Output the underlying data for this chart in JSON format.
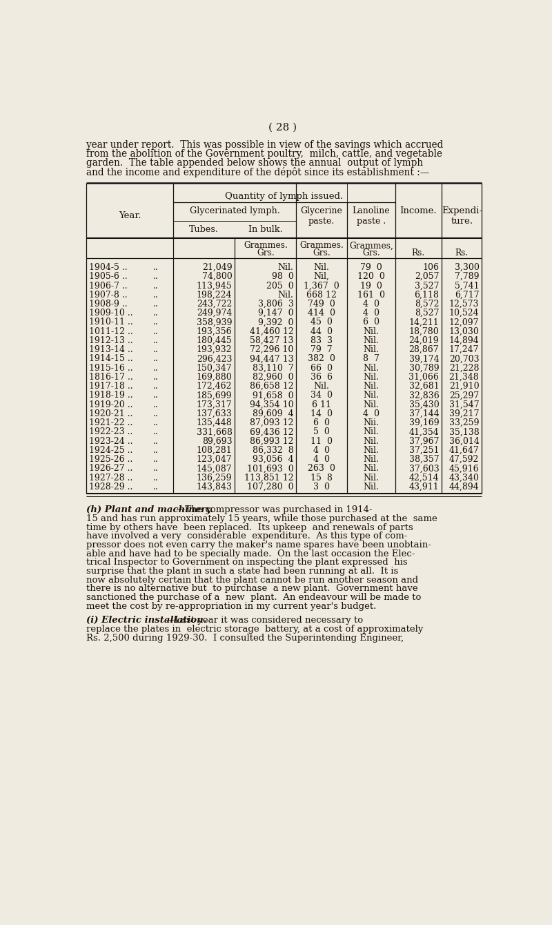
{
  "page_number": "( 28 )",
  "background_color": "#f0ebe0",
  "intro_text_lines": [
    "year under report.  This was possible in view of the savings which accrued",
    "from the abolition of the Government poultry,  milch, cattle, and vegetable",
    "garden.  The table appended below shows the annual  output of lymph",
    "and the income and expenditure of the dépôt since its establishment :—"
  ],
  "table": {
    "rows": [
      [
        "1904-5",
        "21,049",
        "Nil.",
        "Nil.",
        "79  0",
        "106",
        "3,300"
      ],
      [
        "1905-6",
        "74,800",
        "98  0",
        "Nil,",
        "120  0",
        "2,057",
        "7,789"
      ],
      [
        "1906-7",
        "113,945",
        "205  0",
        "1,367  0",
        "19  0",
        "3,527",
        "5,741"
      ],
      [
        "1907-8",
        "198,224",
        "Nil.",
        "668 12",
        "161  0",
        "6,118",
        "6,717"
      ],
      [
        "1908-9",
        "243,722",
        "3,806  3",
        "749  0",
        "4  0",
        "8,572",
        "12,573"
      ],
      [
        "1909-10",
        "249,974",
        "9,147  0",
        "414  0",
        "4  0",
        "8,527",
        "10,524"
      ],
      [
        "1910-11",
        "358,939",
        "9,392  0",
        "45  0",
        "6  0",
        "14,211",
        "12,097"
      ],
      [
        "1011-12",
        "193,356",
        "41,460 12",
        "44  0",
        "Nil.",
        "18,780",
        "13,030"
      ],
      [
        "1912-13",
        "180,445",
        "58,427 13",
        "83  3",
        "Nil.",
        "24,019",
        "14,894"
      ],
      [
        "1913-14",
        "193,932",
        "72,296 10",
        "79  7",
        "Nil.",
        "28,867",
        "17,247"
      ],
      [
        "1914-15",
        "296,423",
        "94,447 13",
        "382  0",
        "8  7",
        "39,174",
        "20,703"
      ],
      [
        "1915-16",
        "150,347",
        "83,110  7",
        "66  0",
        "Nil.",
        "30,789",
        "21,228"
      ],
      [
        "1816-17",
        "169,880",
        "82,960  0",
        "36  6",
        "Nil.",
        "31,066",
        "21,348"
      ],
      [
        "1917-18",
        "172,462",
        "86,658 12",
        "Nil.",
        "Nil.",
        "32,681",
        "21,910"
      ],
      [
        "1918-19",
        "185,699",
        "91,658  0",
        "34  0",
        "Nil.",
        "32,836",
        "25,297"
      ],
      [
        "1919-20",
        "173,317",
        "94,354 10",
        "6 11",
        "Nil.",
        "35,430",
        "31,547"
      ],
      [
        "1920-21",
        "137,633",
        "89,609  4",
        "14  0",
        "4  0",
        "37,144",
        "39,217"
      ],
      [
        "1921-22",
        "135,448",
        "87,093 12",
        "6  0",
        "Nii.",
        "39,169",
        "33,259"
      ],
      [
        "1922-23",
        "331,668",
        "69,436 12",
        "5  0",
        "Nil.",
        "41,354",
        "35,138"
      ],
      [
        "1923-24",
        "89,693",
        "86,993 12",
        "11  0",
        "Nil.",
        "37,967",
        "36,014"
      ],
      [
        "1924-25",
        "108,281",
        "86,332  8",
        "4  0",
        "Nil.",
        "37,251",
        "41,647"
      ],
      [
        "1925-26",
        "123,047",
        "93,056  4",
        "4  0",
        "Nil.",
        "38,357",
        "47,592"
      ],
      [
        "1926-27",
        "145,087",
        "101,693  0",
        "263  0",
        "Nil.",
        "37,603",
        "45,916"
      ],
      [
        "1927-28",
        "136,259",
        "113,851 12",
        "15  8",
        "Nil.",
        "42,514",
        "43,340"
      ],
      [
        "1928-29",
        "143,843",
        "107,280  0",
        "3  0",
        "Nil.",
        "43,911",
        "44,894"
      ]
    ]
  },
  "footer_h_lines": [
    "15 and has run approximately 15 years, while those purchased at the  same",
    "time by others have  been replaced.  Its upkeep  and renewals of parts",
    "have involved a very  considerable  expenditure.  As this type of com-",
    "pressor does not even carry the maker's name spares have been unobtain-",
    "able and have had to be specially made.  On the last occasion the Elec-",
    "trical Inspector to Government on inspecting the plant expressed  his",
    "surprise that the plant in such a state had been running at all.  It is",
    "now absolutely certain that the plant cannot be run another season and",
    "there is no alternative but  to purchase  a new plant.  Government have",
    "sanctioned the purchase of a  new  plant.  An endeavour will be made to",
    "meet the cost by re-appropriation in my current year's budget."
  ],
  "footer_i_lines": [
    "replace the plates in  electric storage  battery, at a cost of approximately",
    "Rs. 2,500 during 1929-30.  I consulted the Superintending Engineer,"
  ]
}
